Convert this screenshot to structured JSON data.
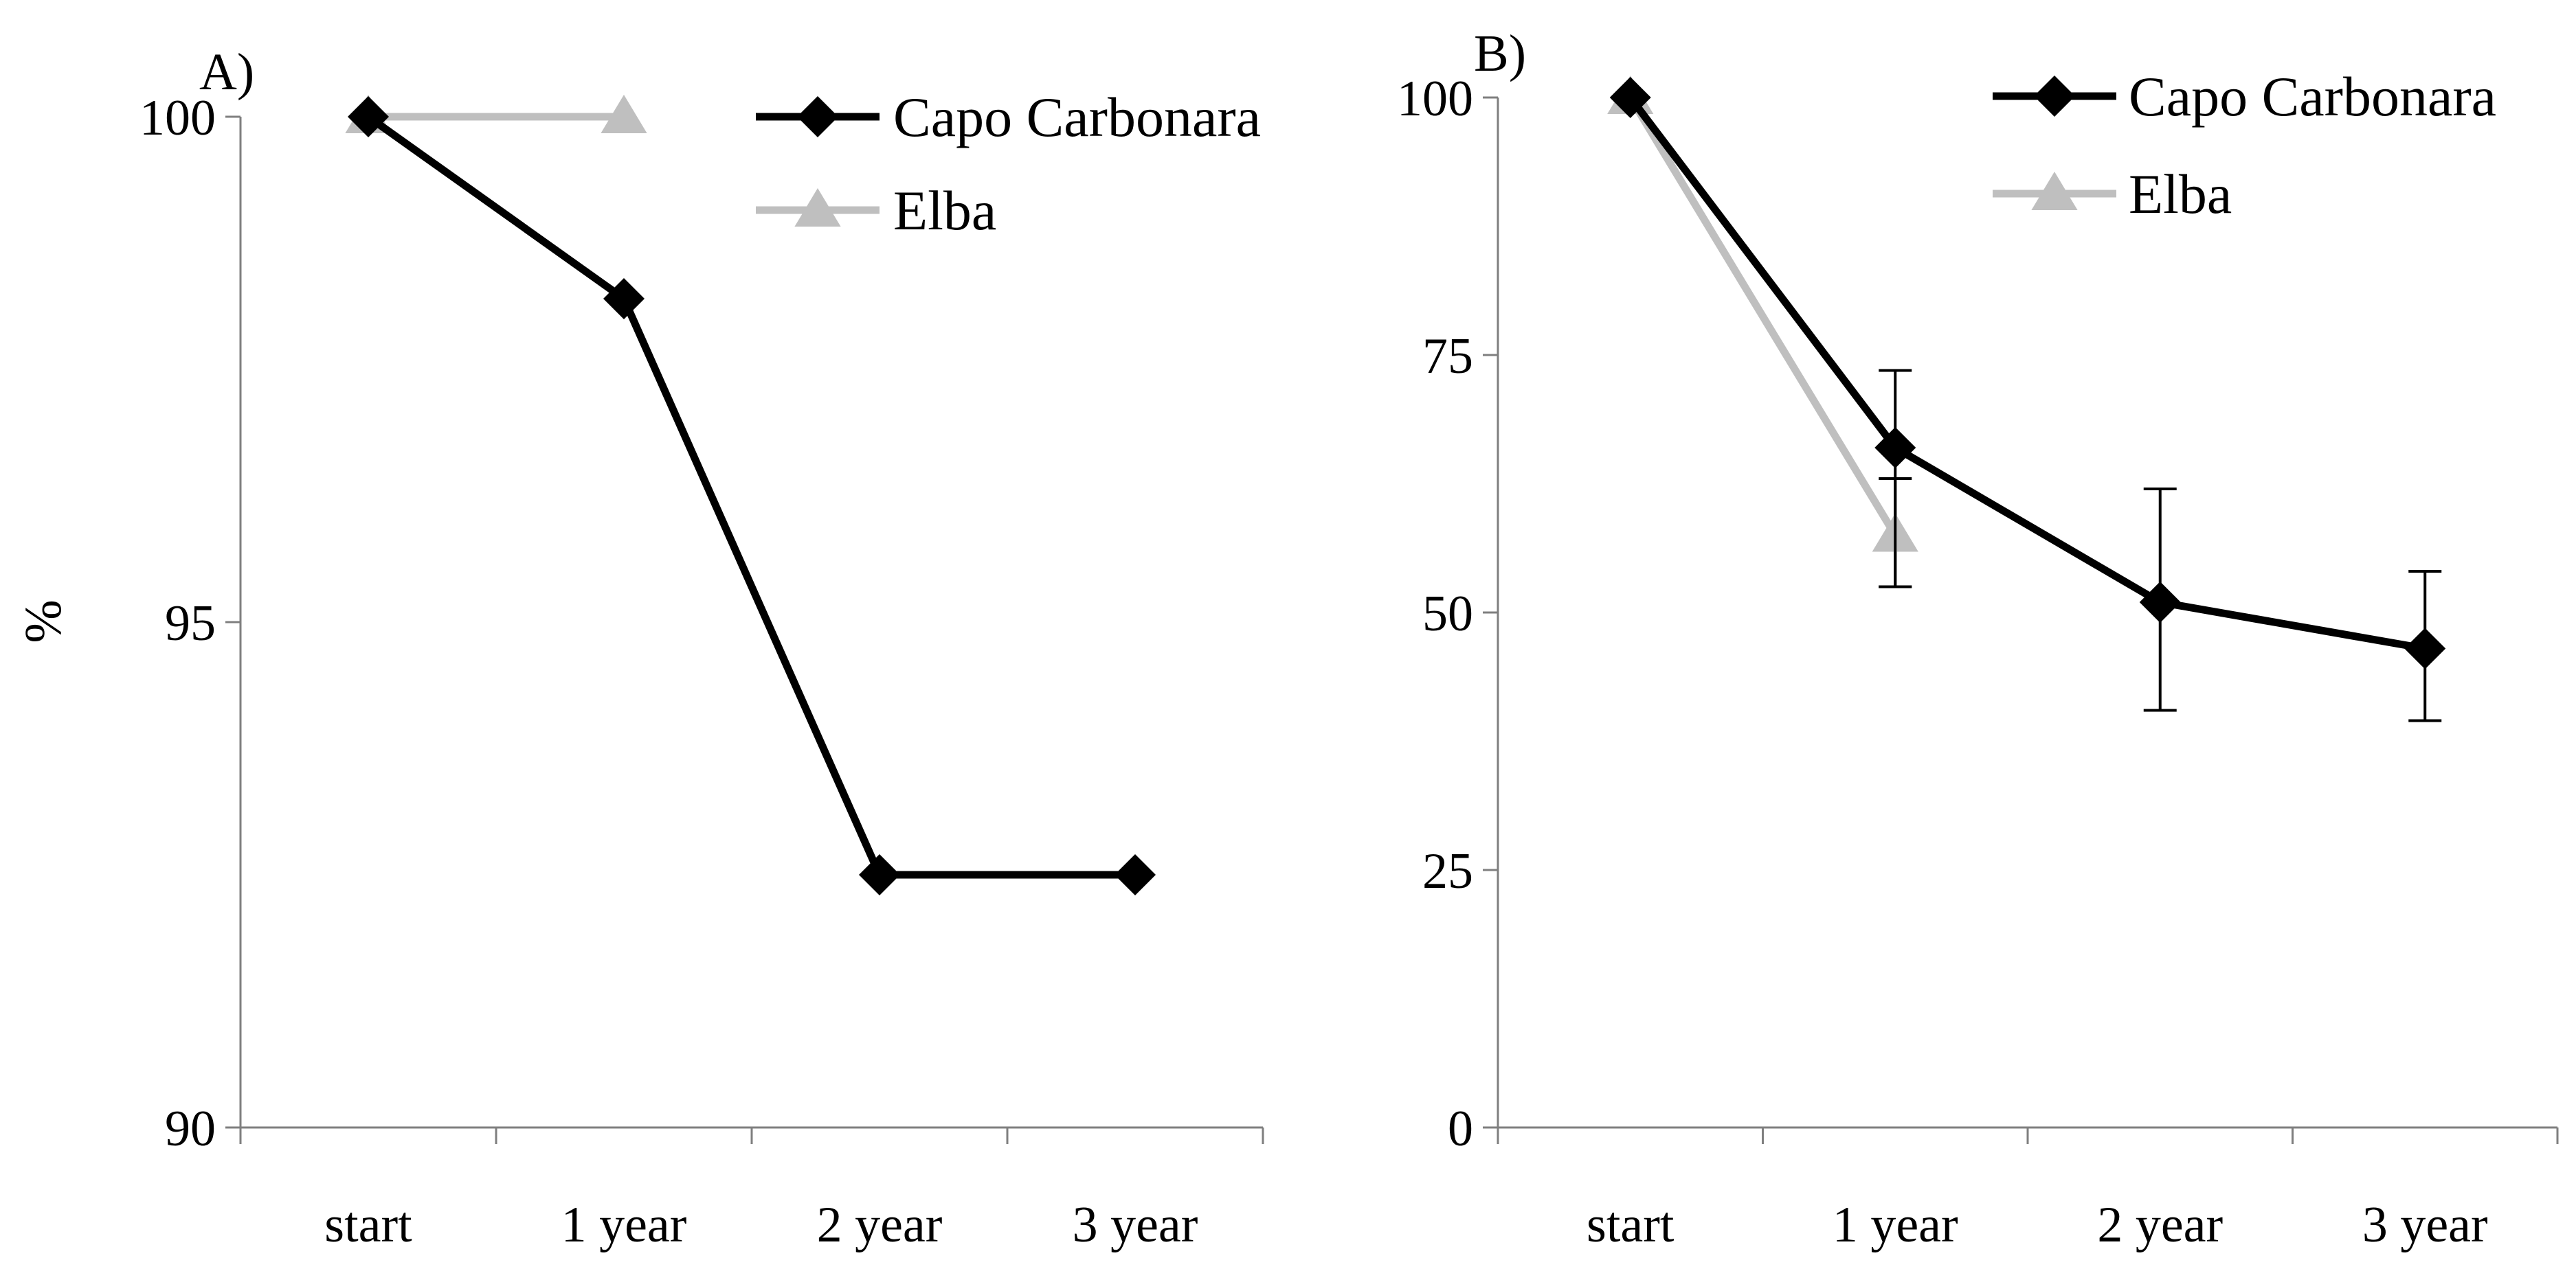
{
  "chart_data": [
    {
      "type": "line",
      "panel_label": "A)",
      "categories": [
        "start",
        "1 year",
        "2 year",
        "3 year"
      ],
      "ylabel": "%",
      "ylim": [
        90,
        100
      ],
      "yticks": [
        90,
        95,
        100
      ],
      "series": [
        {
          "name": "Capo Carbonara",
          "color": "#000000",
          "marker": "diamond",
          "values": [
            100,
            98.2,
            92.5,
            92.5
          ]
        },
        {
          "name": "Elba",
          "color": "#bfbfbf",
          "marker": "triangle",
          "values": [
            100,
            100,
            null,
            null
          ]
        }
      ],
      "legend_position": "top-right"
    },
    {
      "type": "line",
      "panel_label": "B)",
      "categories": [
        "start",
        "1 year",
        "2 year",
        "3 year"
      ],
      "ylabel": "",
      "ylim": [
        0,
        100
      ],
      "yticks": [
        0,
        25,
        50,
        75,
        100
      ],
      "series": [
        {
          "name": "Capo Carbonara",
          "color": "#000000",
          "marker": "diamond",
          "values": [
            100,
            66,
            51,
            46.5
          ],
          "errors": [
            null,
            [
              52.5,
              73.5
            ],
            [
              40.5,
              62
            ],
            [
              39.5,
              54
            ]
          ]
        },
        {
          "name": "Elba",
          "color": "#bfbfbf",
          "marker": "triangle",
          "values": [
            100,
            57.5,
            null,
            null
          ],
          "errors": [
            null,
            [
              52.5,
              63
            ],
            null,
            null
          ]
        }
      ],
      "legend_position": "top-right"
    }
  ]
}
